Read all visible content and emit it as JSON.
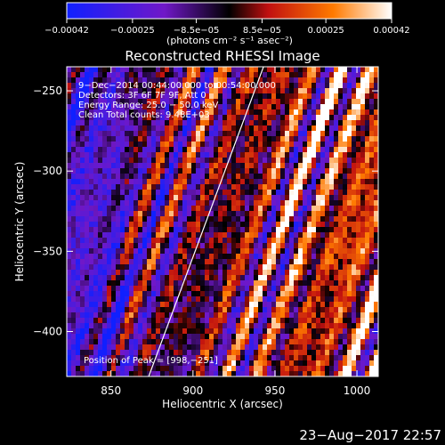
{
  "chart_data": {
    "type": "heatmap",
    "title": "Reconstructed RHESSI Image",
    "xlabel": "Heliocentric X (arcsec)",
    "ylabel": "Heliocentric Y (arcsec)",
    "xlim": [
      823,
      1013
    ],
    "ylim": [
      -428,
      -235
    ],
    "x_ticks": [
      850,
      900,
      950,
      1000
    ],
    "y_ticks": [
      -250,
      -300,
      -350,
      -400
    ],
    "x_tick_labels": [
      "850",
      "900",
      "950",
      "1000"
    ],
    "y_tick_labels": [
      "−250",
      "−300",
      "−350",
      "−400"
    ],
    "colorbar": {
      "range": [
        -0.00042,
        0.00042
      ],
      "ticks": [
        -0.00042,
        -0.00025,
        -8.5e-05,
        8.5e-05,
        0.00025,
        0.00042
      ],
      "tick_labels": [
        "−0.00042",
        "−0.00025",
        "−8.5e−05",
        "8.5e−05",
        "0.00025",
        "0.00042"
      ],
      "units_label": "(photons cm⁻² s⁻¹ asec⁻²)",
      "colors": [
        "#1020ff",
        "#7018c8",
        "#000000",
        "#c01010",
        "#ff7a00",
        "#ffffff"
      ]
    },
    "annotations": [
      "9−Dec−2014 00:44:00.000 to 00:54:00.000",
      "Detectors: 3F 6F 7F 9F, Att 0",
      "Energy Range: 25.0 − 50.0 keV",
      "Clean    Total counts: 9.48E+03"
    ],
    "peak_label": "Position of Peak = [998,−251]",
    "limb_line": [
      [
        873,
        -428
      ],
      [
        943,
        -235
      ]
    ],
    "grid": false
  },
  "footer": {
    "timestamp": "23−Aug−2017 22:57"
  }
}
